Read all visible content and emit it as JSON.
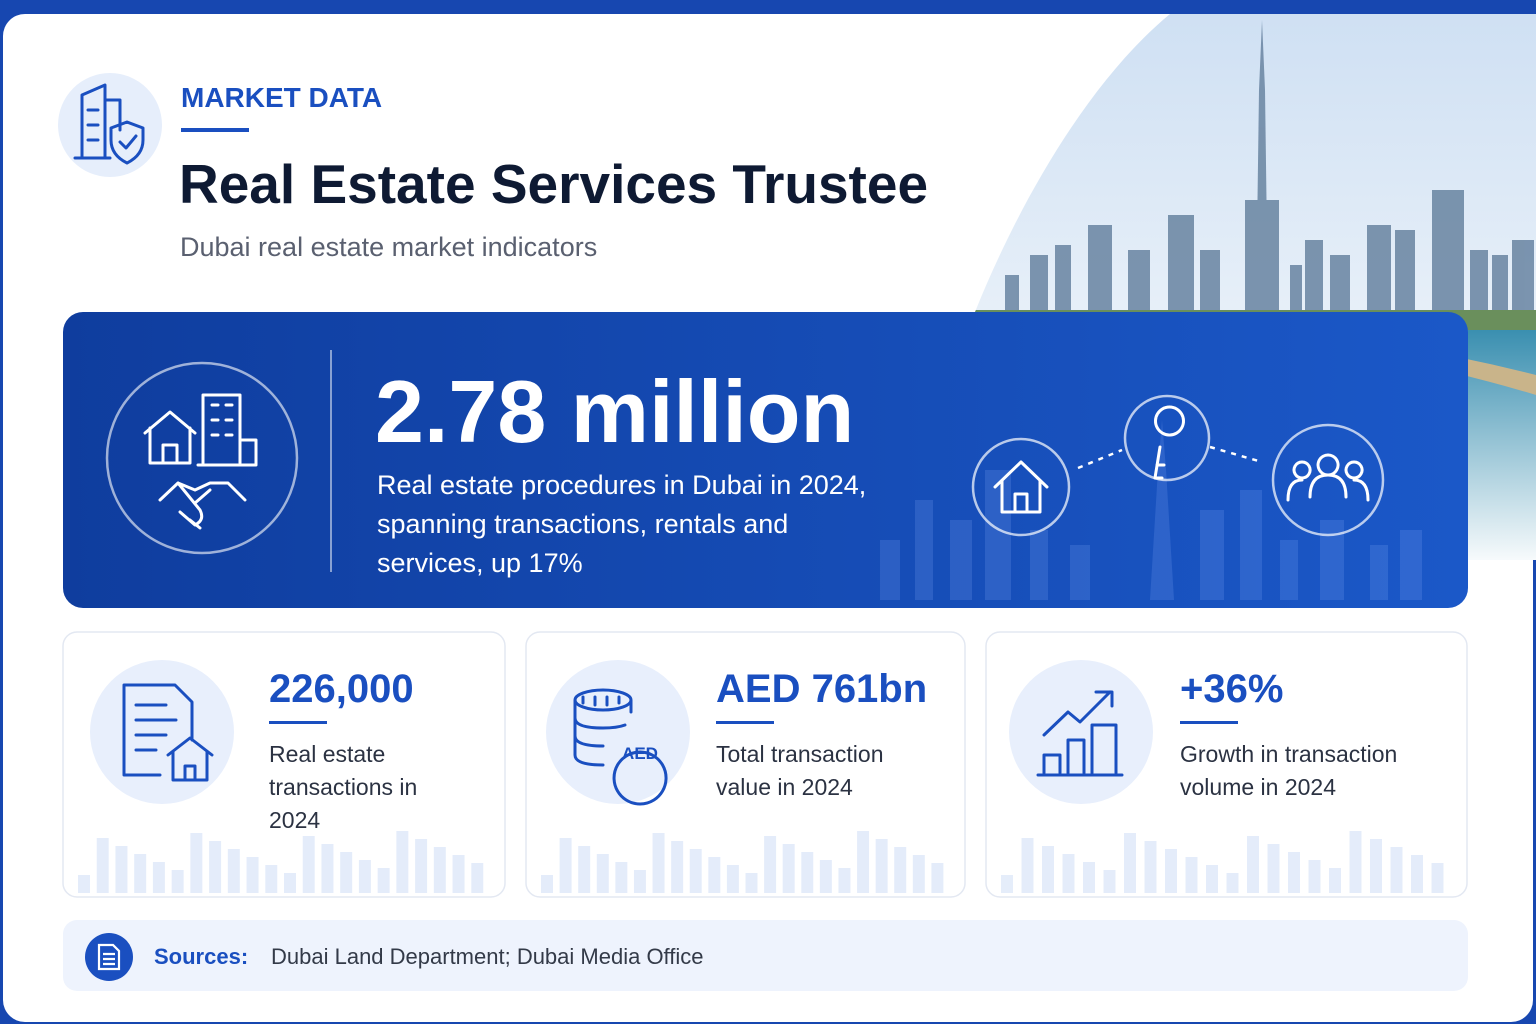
{
  "header": {
    "kicker": "MARKET DATA",
    "title": "Real Estate Services Trustee",
    "subtitle": "Dubai real estate market indicators"
  },
  "hero": {
    "value": "2.78 million",
    "description_lines": [
      "Real estate procedures in Dubai in 2024,",
      "spanning transactions, rentals and",
      "services, up 17%"
    ]
  },
  "stats": [
    {
      "value": "226,000",
      "description_lines": [
        "Real estate",
        "transactions in",
        "2024"
      ]
    },
    {
      "value": "AED 761bn",
      "icon_label": "AED",
      "description_lines": [
        "Total transaction",
        "value in 2024"
      ]
    },
    {
      "value": "+36%",
      "description_lines": [
        "Growth in transaction",
        "volume in 2024"
      ]
    }
  ],
  "sources": {
    "label": "Sources:",
    "text": "Dubai Land Department; Dubai Media Office"
  }
}
